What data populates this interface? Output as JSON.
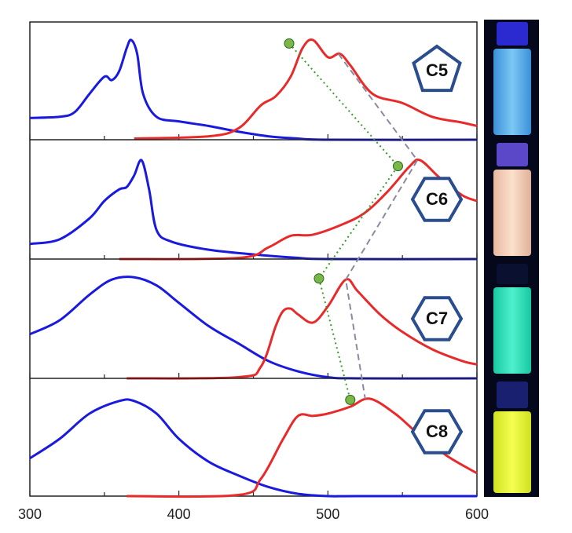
{
  "chart_data": {
    "type": "line",
    "xlim": [
      300,
      600
    ],
    "xticks": [
      300,
      400,
      500,
      600
    ],
    "minor_xticks": [
      350,
      450,
      550
    ],
    "ylim": [
      0,
      1
    ],
    "marker_color": "#7ab648",
    "marker_line_color": "#3a9a2a",
    "peak_line_color": "#8a8aa0",
    "panels": [
      {
        "label": "C5",
        "badge": "pentagon",
        "series": [
          {
            "color": "#1a1adf",
            "x": [
              300,
              320,
              330,
              340,
              350,
              355,
              360,
              365,
              368,
              372,
              376,
              385,
              400,
              420,
              440,
              460,
              480,
              500,
              600
            ],
            "values": [
              0.19,
              0.2,
              0.24,
              0.4,
              0.55,
              0.52,
              0.6,
              0.8,
              0.87,
              0.75,
              0.4,
              0.2,
              0.16,
              0.12,
              0.07,
              0.03,
              0.01,
              0,
              0
            ]
          },
          {
            "color": "#e82a2a",
            "x": [
              370,
              420,
              440,
              455,
              465,
              475,
              483,
              490,
              500,
              508,
              515,
              530,
              550,
              570,
              590,
              600
            ],
            "values": [
              0.01,
              0.03,
              0.1,
              0.3,
              0.38,
              0.55,
              0.8,
              0.87,
              0.72,
              0.75,
              0.65,
              0.4,
              0.32,
              0.2,
              0.15,
              0.12
            ]
          }
        ],
        "marker": {
          "x": 474,
          "value": 0.84
        },
        "peak": {
          "x": 507,
          "value": 0.75
        }
      },
      {
        "label": "C6",
        "badge": "hexagon",
        "series": [
          {
            "color": "#1a1adf",
            "x": [
              300,
              320,
              340,
              350,
              360,
              365,
              370,
              375,
              380,
              385,
              395,
              420,
              450,
              480,
              500,
              600
            ],
            "values": [
              0.13,
              0.17,
              0.35,
              0.5,
              0.6,
              0.62,
              0.72,
              0.85,
              0.6,
              0.25,
              0.15,
              0.08,
              0.04,
              0.01,
              0,
              0
            ]
          },
          {
            "color": "#e82a2a",
            "x": [
              360,
              440,
              460,
              475,
              490,
              510,
              525,
              540,
              555,
              562,
              575,
              590,
              600
            ],
            "values": [
              0,
              0.01,
              0.1,
              0.2,
              0.21,
              0.3,
              0.4,
              0.58,
              0.8,
              0.85,
              0.7,
              0.55,
              0.5
            ]
          }
        ],
        "marker": {
          "x": 547,
          "value": 0.8
        },
        "peak": {
          "x": 560,
          "value": 0.85
        }
      },
      {
        "label": "C7",
        "badge": "hexagon",
        "series": [
          {
            "color": "#1a1adf",
            "x": [
              300,
              320,
              340,
              355,
              370,
              385,
              400,
              420,
              440,
              460,
              480,
              500,
              520,
              600
            ],
            "values": [
              0.38,
              0.5,
              0.72,
              0.85,
              0.87,
              0.8,
              0.65,
              0.45,
              0.3,
              0.15,
              0.06,
              0.01,
              0,
              0
            ]
          },
          {
            "color": "#e82a2a",
            "x": [
              365,
              440,
              455,
              465,
              470,
              475,
              480,
              490,
              500,
              512,
              520,
              535,
              550,
              570,
              590,
              600
            ],
            "values": [
              0,
              0.01,
              0.1,
              0.45,
              0.58,
              0.6,
              0.55,
              0.48,
              0.62,
              0.85,
              0.75,
              0.55,
              0.4,
              0.25,
              0.15,
              0.12
            ]
          }
        ],
        "marker": {
          "x": 494,
          "value": 0.86
        },
        "peak": {
          "x": 512,
          "value": 0.85
        }
      },
      {
        "label": "C8",
        "badge": "hexagon",
        "series": [
          {
            "color": "#1a1adf",
            "x": [
              300,
              320,
              340,
              360,
              370,
              385,
              400,
              420,
              440,
              460,
              480,
              500,
              520,
              600
            ],
            "values": [
              0.33,
              0.5,
              0.72,
              0.83,
              0.83,
              0.72,
              0.5,
              0.3,
              0.18,
              0.08,
              0.02,
              0,
              0,
              0
            ]
          },
          {
            "color": "#e82a2a",
            "x": [
              365,
              440,
              455,
              470,
              480,
              490,
              500,
              515,
              528,
              545,
              560,
              580,
              600
            ],
            "values": [
              0,
              0.01,
              0.15,
              0.5,
              0.7,
              0.7,
              0.72,
              0.78,
              0.85,
              0.72,
              0.55,
              0.35,
              0.2
            ]
          }
        ],
        "marker": {
          "x": 515,
          "value": 0.84
        },
        "peak": {
          "x": 525,
          "value": 0.85
        }
      }
    ]
  }
}
